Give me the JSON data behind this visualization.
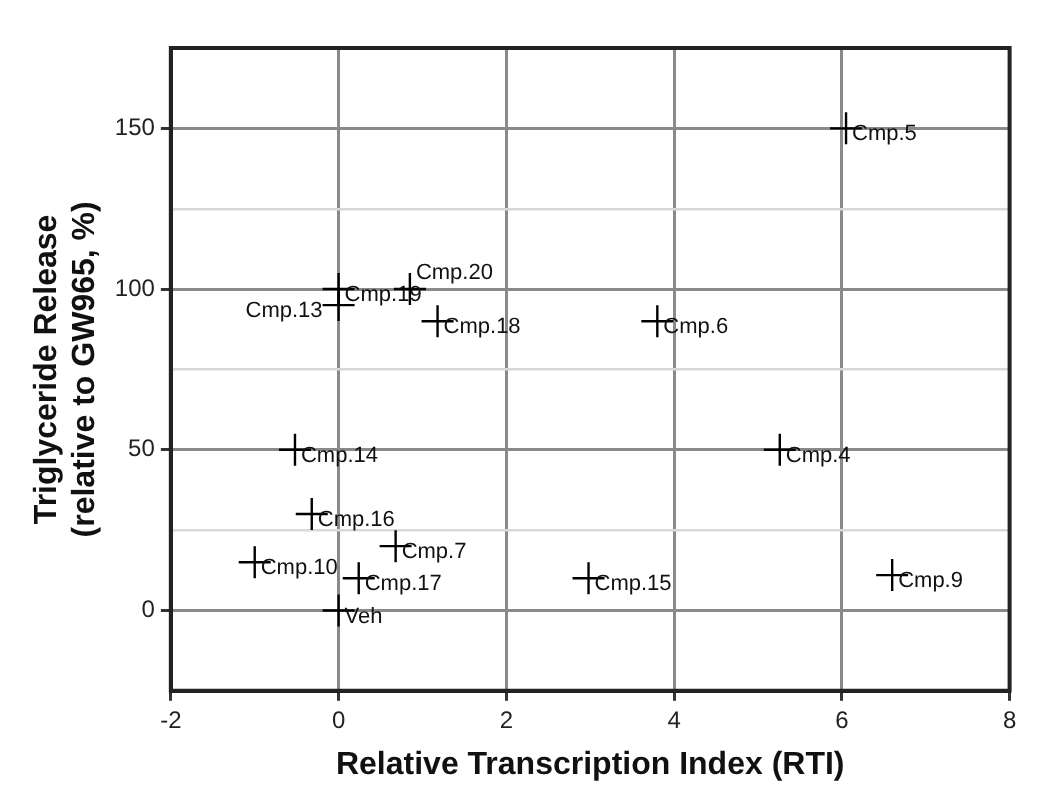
{
  "chart_data": {
    "type": "scatter",
    "xlabel": "Relative Transcription Index (RTI)",
    "ylabel": "Triglyceride Release\n(relative to GW965, %)",
    "x": [
      6.05,
      0,
      0.85,
      0,
      1.18,
      3.8,
      -0.52,
      5.26,
      -0.32,
      0.68,
      -1.0,
      0.24,
      2.98,
      6.6,
      0
    ],
    "series": [
      {
        "color": "#000000",
        "values": [
          150,
          100,
          100,
          95,
          90,
          90,
          50,
          50,
          30,
          20,
          15,
          10,
          10,
          11,
          0
        ]
      }
    ],
    "annotations": [
      {
        "text": "Cmp.5",
        "x": 6.05,
        "y": 150
      },
      {
        "text": "Cmp.19",
        "x": 0,
        "y": 100
      },
      {
        "text": "Cmp.20",
        "x": 0.85,
        "y": 100
      },
      {
        "text": "Cmp.13",
        "x": 0,
        "y": 95
      },
      {
        "text": "Cmp.18",
        "x": 1.18,
        "y": 90
      },
      {
        "text": "Cmp.6",
        "x": 3.8,
        "y": 90
      },
      {
        "text": "Cmp.14",
        "x": -0.52,
        "y": 50
      },
      {
        "text": "Cmp.4",
        "x": 5.26,
        "y": 50
      },
      {
        "text": "Cmp.16",
        "x": -0.32,
        "y": 30
      },
      {
        "text": "Cmp.7",
        "x": 0.68,
        "y": 20
      },
      {
        "text": "Cmp.10",
        "x": -1.0,
        "y": 15
      },
      {
        "text": "Cmp.17",
        "x": 0.24,
        "y": 10
      },
      {
        "text": "Cmp.15",
        "x": 2.98,
        "y": 10
      },
      {
        "text": "Cmp.9",
        "x": 6.6,
        "y": 11
      },
      {
        "text": "Veh",
        "x": 0,
        "y": 0
      }
    ],
    "xlim": [
      -2,
      8
    ],
    "xticks": [
      -2,
      0,
      2,
      4,
      6,
      8
    ],
    "ylim": [
      -25,
      175
    ],
    "yticks": [
      {
        "value": -25,
        "label": null
      },
      0,
      {
        "value": 25,
        "label": null
      },
      50,
      {
        "value": 75,
        "label": null
      },
      100,
      {
        "value": 125,
        "label": null
      },
      150,
      {
        "value": 175,
        "label": null
      }
    ],
    "grid": true,
    "marker": "cross",
    "legend": false
  }
}
